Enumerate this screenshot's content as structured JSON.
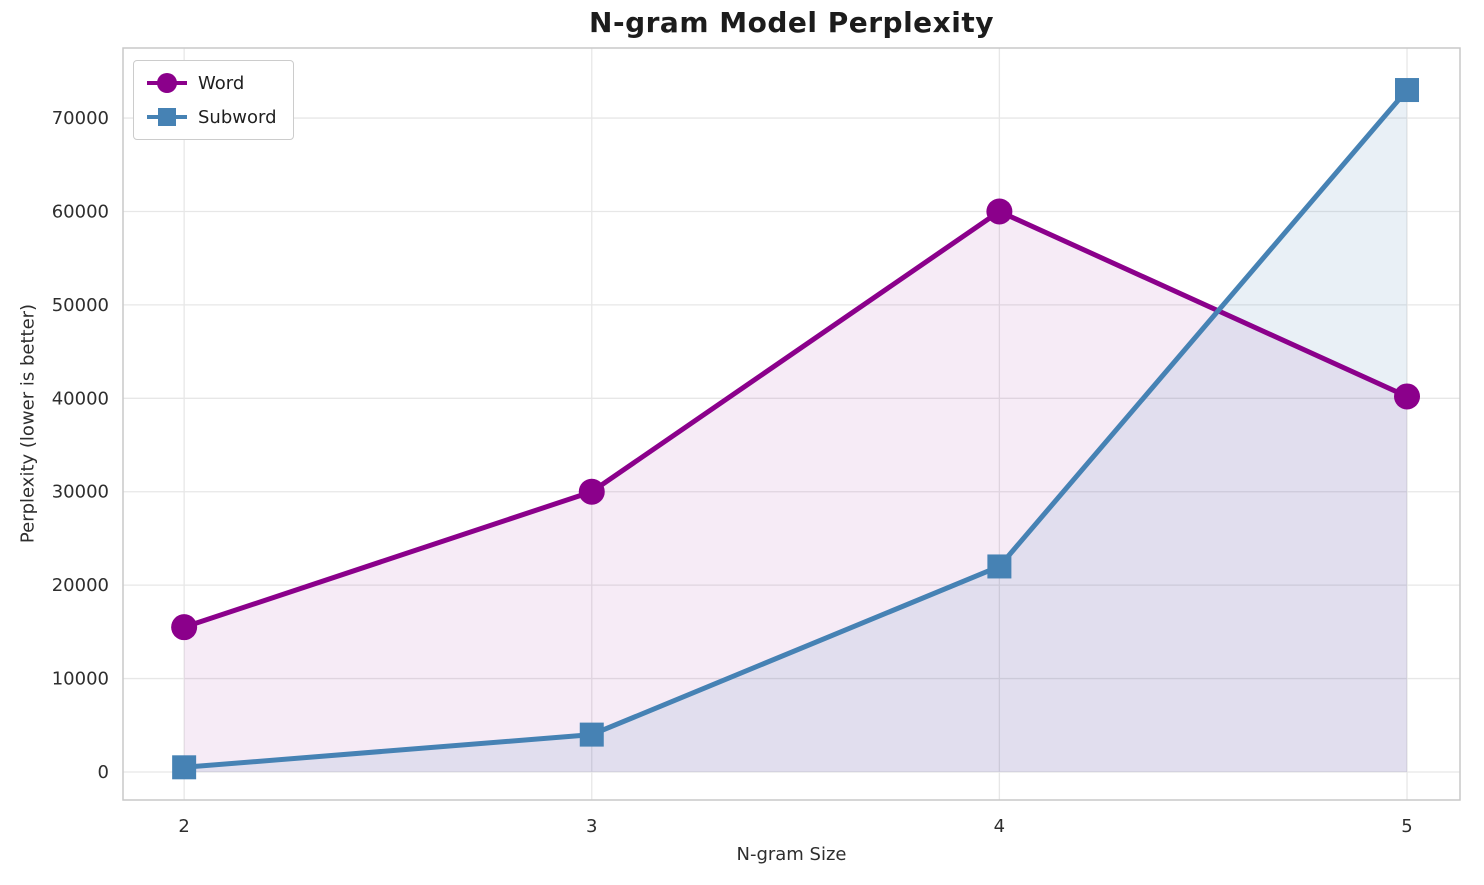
{
  "chart_data": {
    "type": "line",
    "title": "N-gram Model Perplexity",
    "xlabel": "N-gram Size",
    "ylabel": "Perplexity (lower is better)",
    "x": [
      2,
      3,
      4,
      5
    ],
    "xticks": [
      2,
      3,
      4,
      5
    ],
    "yticks": [
      0,
      10000,
      20000,
      30000,
      40000,
      50000,
      60000,
      70000
    ],
    "xlim": [
      1.85,
      5.13
    ],
    "ylim": [
      -3000,
      77500
    ],
    "grid": true,
    "legend_position": "upper left",
    "area_baseline": 0,
    "series": [
      {
        "name": "Word",
        "color": "#8B008B",
        "fill_opacity": 0.08,
        "marker": "circle",
        "values": [
          15500,
          30000,
          60000,
          40200
        ]
      },
      {
        "name": "Subword",
        "color": "#4682B4",
        "fill_opacity": 0.12,
        "marker": "square",
        "values": [
          500,
          4000,
          22000,
          73000
        ]
      }
    ]
  }
}
